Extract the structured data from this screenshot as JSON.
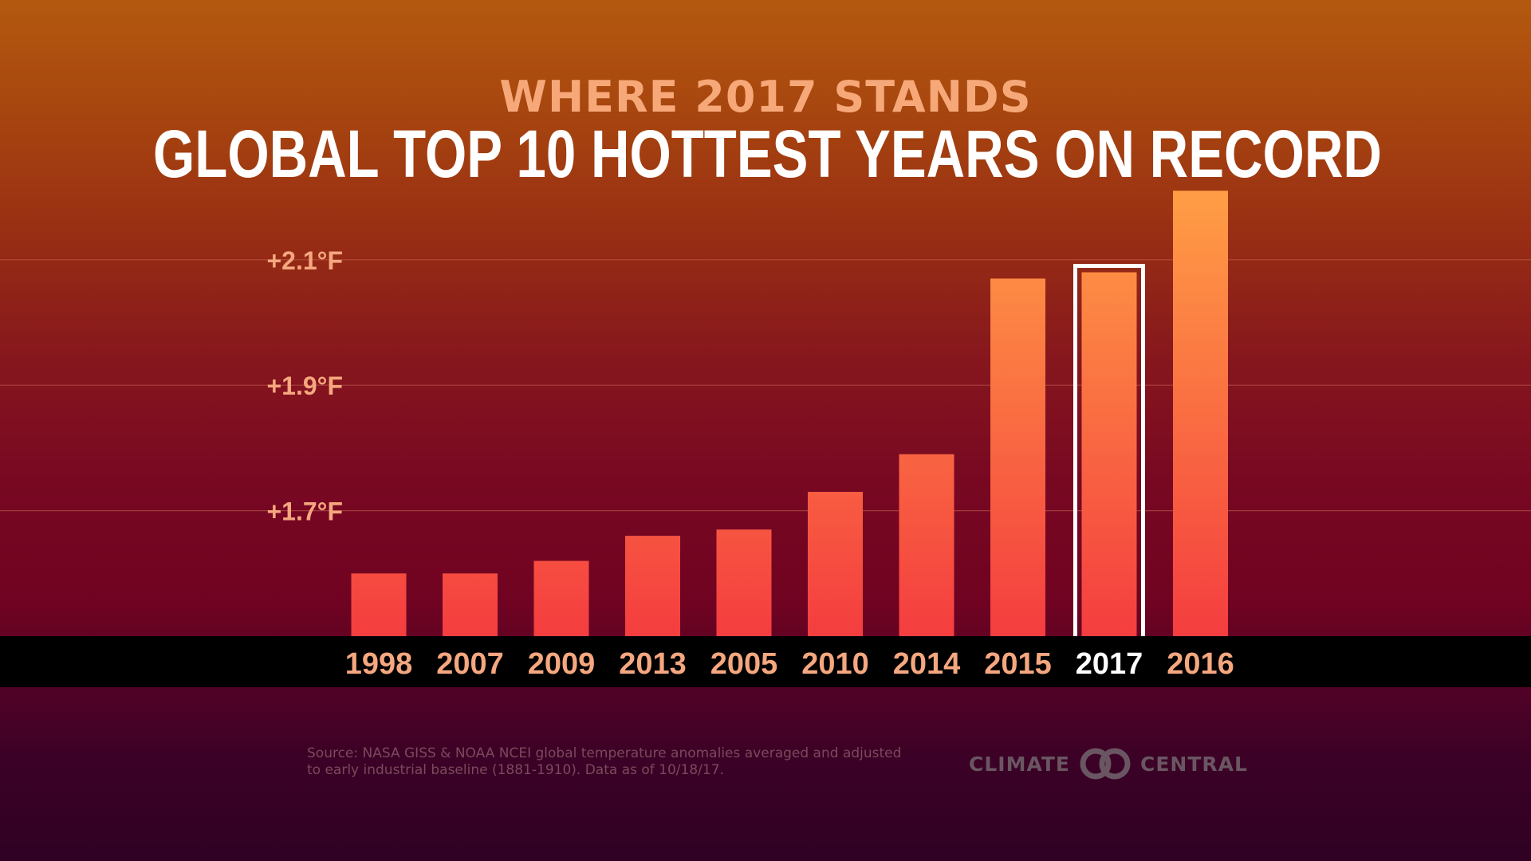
{
  "header": {
    "kicker": "WHERE 2017 STANDS",
    "title": "GLOBAL TOP 10 HOTTEST YEARS ON RECORD"
  },
  "chart_data": {
    "type": "bar",
    "title": "GLOBAL TOP 10 HOTTEST YEARS ON RECORD",
    "subtitle": "WHERE 2017 STANDS",
    "categories": [
      "1998",
      "2007",
      "2009",
      "2013",
      "2005",
      "2010",
      "2014",
      "2015",
      "2017",
      "2016"
    ],
    "values": [
      1.6,
      1.6,
      1.62,
      1.66,
      1.67,
      1.73,
      1.79,
      2.07,
      2.08,
      2.21
    ],
    "highlight": "2017",
    "y_ticks": [
      {
        "value": 1.7,
        "label": "+1.7°F"
      },
      {
        "value": 1.9,
        "label": "+1.9°F"
      },
      {
        "value": 2.1,
        "label": "+2.1°F"
      }
    ],
    "ylim": [
      1.5,
      2.25
    ],
    "grid": true,
    "xlabel": "",
    "ylabel": ""
  },
  "footer": {
    "source_line1": "Source: NASA GISS & NOAA NCEI global temperature anomalies averaged and adjusted",
    "source_line2": "to early industrial baseline (1881-1910). Data as of 10/18/17.",
    "logo_left": "CLIMATE",
    "logo_right": "CENTRAL"
  },
  "colors": {
    "kicker": "#f6a878",
    "tick_label": "#f5a77f",
    "highlight_label": "#ffffff",
    "bar_top": "#ff9d45",
    "bar_bottom": "#f43d3f",
    "highlight_outline": "#ffffff",
    "axis_band": "#000000",
    "gridline": "#c86a55"
  }
}
